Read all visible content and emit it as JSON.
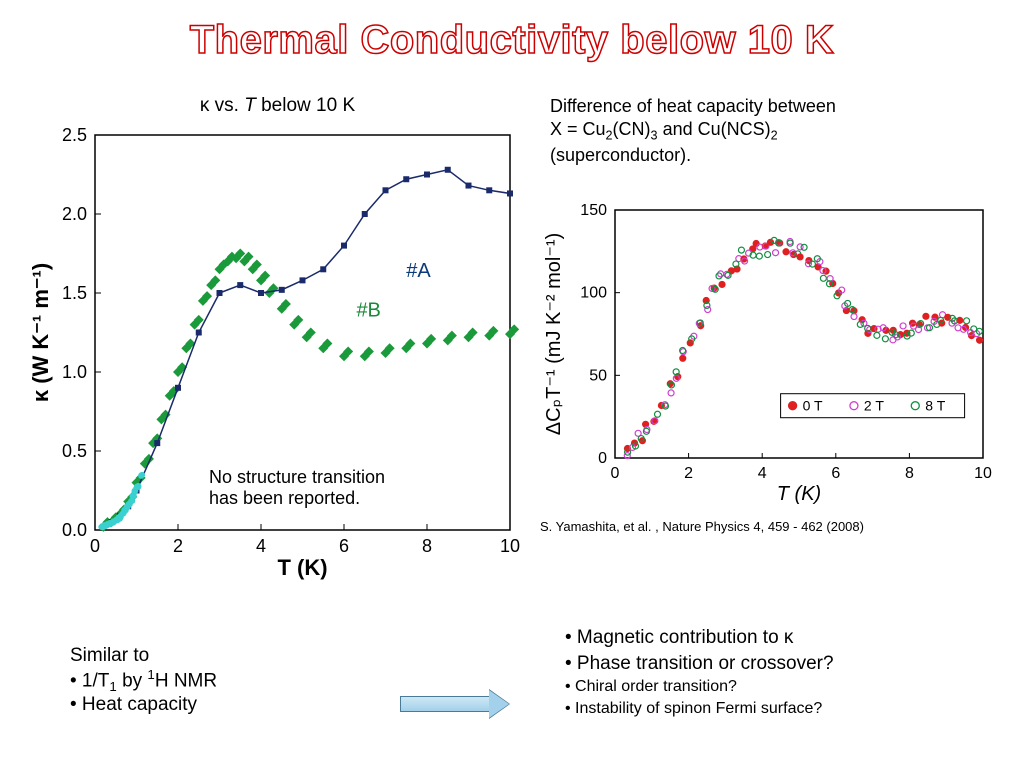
{
  "title": "Thermal Conductivity below 10 K",
  "title_fontsize": 40,
  "title_stroke_color": "#c00000",
  "left_chart": {
    "caption_prefix": "κ  vs. ",
    "caption_ital": "T",
    "caption_suffix": " below 10 K",
    "type": "scatter-line",
    "xlabel": "T (K)",
    "ylabel": "κ (W K⁻¹ m⁻¹)",
    "label_fontsize": 22,
    "tick_fontsize": 18,
    "xlim": [
      0,
      10
    ],
    "ylim": [
      0.0,
      2.5
    ],
    "xticks": [
      0,
      2,
      4,
      6,
      8,
      10
    ],
    "yticks": [
      0.0,
      0.5,
      1.0,
      1.5,
      2.0,
      2.5
    ],
    "series_A": {
      "label": "#A",
      "label_color": "#0a3a7a",
      "marker_color": "#1a2a6a",
      "line_color": "#1a2a6a",
      "marker": "square",
      "marker_size": 6,
      "data": [
        [
          0.2,
          0.02
        ],
        [
          0.4,
          0.05
        ],
        [
          0.6,
          0.09
        ],
        [
          0.8,
          0.15
        ],
        [
          1.0,
          0.25
        ],
        [
          1.5,
          0.55
        ],
        [
          2.0,
          0.9
        ],
        [
          2.5,
          1.25
        ],
        [
          3.0,
          1.5
        ],
        [
          3.5,
          1.55
        ],
        [
          4.0,
          1.5
        ],
        [
          4.5,
          1.52
        ],
        [
          5.0,
          1.58
        ],
        [
          5.5,
          1.65
        ],
        [
          6.0,
          1.8
        ],
        [
          6.5,
          2.0
        ],
        [
          7.0,
          2.15
        ],
        [
          7.5,
          2.22
        ],
        [
          8.0,
          2.25
        ],
        [
          8.5,
          2.28
        ],
        [
          9.0,
          2.18
        ],
        [
          9.5,
          2.15
        ],
        [
          10.0,
          2.13
        ]
      ]
    },
    "series_B": {
      "label": "#B",
      "label_color": "#1a8a3a",
      "marker_color": "#1a9a3a",
      "marker": "diamond",
      "marker_size": 5,
      "data": [
        [
          0.2,
          0.02
        ],
        [
          0.4,
          0.05
        ],
        [
          0.6,
          0.1
        ],
        [
          0.8,
          0.18
        ],
        [
          1.0,
          0.3
        ],
        [
          1.2,
          0.42
        ],
        [
          1.4,
          0.55
        ],
        [
          1.6,
          0.7
        ],
        [
          1.8,
          0.85
        ],
        [
          2.0,
          1.0
        ],
        [
          2.2,
          1.15
        ],
        [
          2.4,
          1.3
        ],
        [
          2.6,
          1.45
        ],
        [
          2.8,
          1.55
        ],
        [
          3.0,
          1.65
        ],
        [
          3.2,
          1.7
        ],
        [
          3.4,
          1.72
        ],
        [
          3.6,
          1.7
        ],
        [
          3.8,
          1.65
        ],
        [
          4.0,
          1.58
        ],
        [
          4.2,
          1.5
        ],
        [
          4.5,
          1.4
        ],
        [
          4.8,
          1.3
        ],
        [
          5.1,
          1.22
        ],
        [
          5.5,
          1.15
        ],
        [
          6.0,
          1.1
        ],
        [
          6.5,
          1.1
        ],
        [
          7.0,
          1.12
        ],
        [
          7.5,
          1.15
        ],
        [
          8.0,
          1.18
        ],
        [
          8.5,
          1.2
        ],
        [
          9.0,
          1.22
        ],
        [
          9.5,
          1.23
        ],
        [
          10.0,
          1.24
        ]
      ]
    },
    "series_lowT": {
      "marker_color": "#3ad0d0",
      "marker": "circle",
      "marker_size": 3,
      "data": [
        [
          0.15,
          0.015
        ],
        [
          0.2,
          0.02
        ],
        [
          0.25,
          0.025
        ],
        [
          0.3,
          0.03
        ],
        [
          0.35,
          0.035
        ],
        [
          0.4,
          0.045
        ],
        [
          0.45,
          0.05
        ],
        [
          0.5,
          0.06
        ],
        [
          0.55,
          0.07
        ],
        [
          0.6,
          0.08
        ],
        [
          0.65,
          0.1
        ],
        [
          0.7,
          0.12
        ],
        [
          0.75,
          0.14
        ],
        [
          0.8,
          0.16
        ],
        [
          0.85,
          0.18
        ],
        [
          0.9,
          0.21
        ],
        [
          0.95,
          0.24
        ],
        [
          1.0,
          0.27
        ],
        [
          1.1,
          0.34
        ]
      ]
    },
    "annotation": "No structure transition\nhas been reported.",
    "background_color": "#ffffff",
    "axis_color": "#000000"
  },
  "right_desc": {
    "line1": "Difference of heat capacity between",
    "line2_pre": "X = Cu",
    "line2_sub1": "2",
    "line2_mid1": "(CN)",
    "line2_sub2": "3",
    "line2_mid2": " and Cu(NCS)",
    "line2_sub3": "2",
    "line3": "(superconductor)."
  },
  "right_chart": {
    "type": "scatter",
    "xlabel": "T (K)",
    "ylabel": "ΔCₚT⁻¹ (mJ K⁻² mol⁻¹)",
    "label_fontsize": 20,
    "tick_fontsize": 16,
    "xlim": [
      0,
      10
    ],
    "ylim": [
      0,
      150
    ],
    "xticks": [
      0,
      2,
      4,
      6,
      8,
      10
    ],
    "yticks": [
      0,
      50,
      100,
      150
    ],
    "marker_size": 3,
    "legend": {
      "items": [
        {
          "label": "0 T",
          "color": "#e02020",
          "marker": "filled-circle"
        },
        {
          "label": "2 T",
          "color": "#d040d0",
          "marker": "open-circle"
        },
        {
          "label": "8 T",
          "color": "#109040",
          "marker": "open-circle"
        }
      ],
      "box_border": "#000000",
      "fontsize": 14
    },
    "data_shape": [
      [
        0.3,
        5
      ],
      [
        0.5,
        8
      ],
      [
        0.7,
        12
      ],
      [
        0.9,
        18
      ],
      [
        1.1,
        25
      ],
      [
        1.3,
        33
      ],
      [
        1.5,
        42
      ],
      [
        1.7,
        52
      ],
      [
        1.9,
        62
      ],
      [
        2.1,
        72
      ],
      [
        2.3,
        82
      ],
      [
        2.5,
        92
      ],
      [
        2.7,
        100
      ],
      [
        2.9,
        108
      ],
      [
        3.1,
        114
      ],
      [
        3.3,
        118
      ],
      [
        3.5,
        122
      ],
      [
        3.7,
        124
      ],
      [
        3.9,
        126
      ],
      [
        4.1,
        127
      ],
      [
        4.3,
        128
      ],
      [
        4.5,
        128
      ],
      [
        4.7,
        127
      ],
      [
        4.9,
        126
      ],
      [
        5.1,
        124
      ],
      [
        5.3,
        121
      ],
      [
        5.5,
        117
      ],
      [
        5.7,
        112
      ],
      [
        5.9,
        106
      ],
      [
        6.1,
        100
      ],
      [
        6.3,
        93
      ],
      [
        6.5,
        87
      ],
      [
        6.7,
        82
      ],
      [
        6.9,
        78
      ],
      [
        7.1,
        76
      ],
      [
        7.3,
        75
      ],
      [
        7.5,
        75
      ],
      [
        7.7,
        76
      ],
      [
        7.9,
        77
      ],
      [
        8.1,
        78
      ],
      [
        8.3,
        80
      ],
      [
        8.5,
        82
      ],
      [
        8.7,
        84
      ],
      [
        8.9,
        84
      ],
      [
        9.1,
        83
      ],
      [
        9.3,
        82
      ],
      [
        9.5,
        80
      ],
      [
        9.7,
        78
      ],
      [
        9.9,
        75
      ]
    ],
    "colors": {
      "0T": "#e02020",
      "2T": "#d040d0",
      "8T": "#109040"
    },
    "background_color": "#ffffff",
    "axis_color": "#000000"
  },
  "reference": "S. Yamashita, et al. , Nature Physics 4, 459 - 462 (2008)",
  "bottom_left": {
    "heading": "Similar to",
    "b1_pre": "• 1/T",
    "b1_sub": "1",
    "b1_mid": "  by ",
    "b1_sup": "1",
    "b1_post": "H NMR",
    "b2": "• Heat capacity"
  },
  "right_bullets": {
    "b1": "• Magnetic contribution to κ",
    "b2": "• Phase transition or crossover?",
    "b3": "• Chiral order transition?",
    "b4": "• Instability of spinon Fermi surface?"
  }
}
